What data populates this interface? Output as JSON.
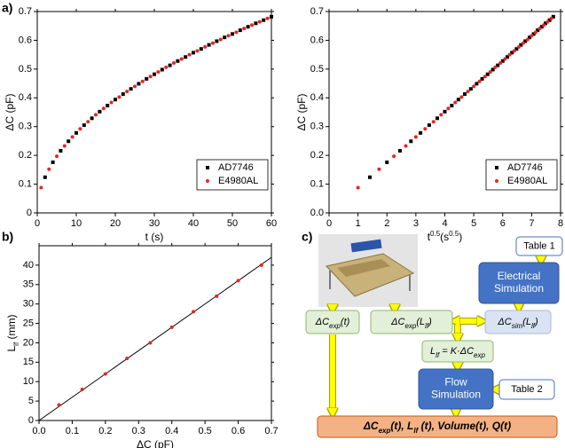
{
  "labels": [
    "a)",
    "b)",
    "c)"
  ],
  "chart_data": [
    {
      "type": "scatter",
      "x_label": "t (s)",
      "y_label": "ΔC (pF)",
      "xlim": [
        0,
        60
      ],
      "xticks": [
        0,
        10,
        20,
        30,
        40,
        50,
        60
      ],
      "ylim": [
        0,
        0.7
      ],
      "yticks": [
        0,
        0.1,
        0.2,
        0.3,
        0.4,
        0.5,
        0.6,
        0.7
      ],
      "legend": "lower right",
      "series": [
        {
          "name": "AD7746",
          "color": "#000000",
          "marker": "square",
          "x": [
            2,
            4,
            6,
            8,
            10,
            12,
            14,
            16,
            18,
            20,
            22,
            24,
            26,
            28,
            30,
            32,
            34,
            36,
            38,
            40,
            42,
            44,
            46,
            48,
            50,
            52,
            54,
            56,
            58,
            60
          ],
          "values": [
            0.124,
            0.176,
            0.216,
            0.249,
            0.278,
            0.305,
            0.329,
            0.352,
            0.373,
            0.394,
            0.413,
            0.431,
            0.449,
            0.466,
            0.482,
            0.498,
            0.513,
            0.528,
            0.542,
            0.557,
            0.57,
            0.584,
            0.597,
            0.61,
            0.622,
            0.635,
            0.647,
            0.659,
            0.67,
            0.682
          ]
        },
        {
          "name": "E4980AL",
          "color": "#e8251e",
          "marker": "circle",
          "x": [
            1,
            3,
            5,
            7,
            9,
            11,
            13,
            15,
            17,
            19,
            21,
            23,
            25,
            27,
            29,
            31,
            33,
            35,
            37,
            39,
            41,
            43,
            45,
            47,
            49,
            51,
            53,
            55,
            57,
            59
          ],
          "values": [
            0.088,
            0.152,
            0.197,
            0.233,
            0.264,
            0.292,
            0.317,
            0.341,
            0.363,
            0.384,
            0.403,
            0.422,
            0.44,
            0.457,
            0.474,
            0.49,
            0.506,
            0.521,
            0.535,
            0.55,
            0.563,
            0.577,
            0.59,
            0.603,
            0.616,
            0.628,
            0.641,
            0.653,
            0.664,
            0.676
          ]
        }
      ]
    },
    {
      "type": "scatter",
      "x_label": [
        "t",
        "0.5",
        "(s",
        "0.5",
        ")"
      ],
      "y_label": "ΔC (pF)",
      "xlim": [
        0,
        8
      ],
      "xticks": [
        0,
        1,
        2,
        3,
        4,
        5,
        6,
        7,
        8
      ],
      "ylim": [
        0,
        0.7
      ],
      "yticks": [
        {
          "value": 0,
          "label": "0.0"
        },
        0.1,
        0.2,
        0.3,
        0.4,
        0.5,
        0.6,
        0.7
      ],
      "legend": "lower right",
      "series": [
        {
          "name": "AD7746",
          "color": "#000000",
          "marker": "square",
          "x": [
            1.41,
            2,
            2.45,
            2.83,
            3.16,
            3.46,
            3.74,
            4,
            4.24,
            4.47,
            4.69,
            4.9,
            5.1,
            5.29,
            5.48,
            5.66,
            5.83,
            6,
            6.16,
            6.32,
            6.48,
            6.63,
            6.78,
            6.93,
            7.07,
            7.21,
            7.35,
            7.48,
            7.62,
            7.75
          ],
          "values": [
            0.124,
            0.176,
            0.216,
            0.249,
            0.278,
            0.305,
            0.329,
            0.352,
            0.373,
            0.394,
            0.413,
            0.431,
            0.449,
            0.466,
            0.482,
            0.498,
            0.513,
            0.528,
            0.542,
            0.557,
            0.57,
            0.584,
            0.597,
            0.61,
            0.622,
            0.635,
            0.647,
            0.659,
            0.67,
            0.682
          ]
        },
        {
          "name": "E4980AL",
          "color": "#e8251e",
          "marker": "circle",
          "x": [
            1,
            1.73,
            2.24,
            2.65,
            3,
            3.32,
            3.61,
            3.87,
            4.12,
            4.36,
            4.58,
            4.8,
            5,
            5.2,
            5.39,
            5.57,
            5.74,
            5.92,
            6.08,
            6.24,
            6.4,
            6.56,
            6.71,
            6.86,
            7,
            7.14,
            7.28,
            7.42,
            7.55,
            7.68
          ],
          "values": [
            0.088,
            0.152,
            0.197,
            0.233,
            0.264,
            0.292,
            0.317,
            0.341,
            0.363,
            0.384,
            0.403,
            0.422,
            0.44,
            0.457,
            0.474,
            0.49,
            0.506,
            0.521,
            0.535,
            0.55,
            0.563,
            0.577,
            0.59,
            0.603,
            0.616,
            0.628,
            0.641,
            0.653,
            0.664,
            0.676
          ]
        }
      ]
    },
    {
      "type": "scatter",
      "x_label": "ΔC (pF)",
      "y_label": [
        "L",
        "lf",
        " (mm)"
      ],
      "xlim": [
        0,
        0.7
      ],
      "xticks": [
        {
          "value": 0,
          "label": "0.0"
        },
        0.1,
        0.2,
        0.3,
        0.4,
        0.5,
        0.6,
        0.7
      ],
      "ylim": [
        0,
        45
      ],
      "yticks": [
        0,
        5,
        10,
        15,
        20,
        25,
        30,
        35,
        40
      ],
      "series": [
        {
          "color": "#e8251e",
          "marker": "circle",
          "x": [
            0.06,
            0.13,
            0.2,
            0.265,
            0.335,
            0.4,
            0.465,
            0.535,
            0.6,
            0.67
          ],
          "values": [
            4,
            8,
            12,
            16,
            20,
            24,
            28,
            32,
            36,
            40
          ]
        }
      ],
      "fit_line": {
        "color": "#000000",
        "x": [
          0,
          0.7
        ],
        "values": [
          0,
          42
        ]
      }
    }
  ],
  "diagram": {
    "nodes": [
      {
        "lines": [
          [
            "Table 1"
          ]
        ]
      },
      {
        "lines": [
          [
            "Electrical"
          ],
          [
            "Simulation"
          ]
        ]
      },
      {
        "lines": [
          [
            "ΔC",
            "exp",
            "(t)"
          ]
        ]
      },
      {
        "lines": [
          [
            "ΔC",
            "exp",
            "(L",
            "lf",
            ")"
          ]
        ]
      },
      {
        "lines": [
          [
            "ΔC",
            "sim",
            "(L",
            "lf",
            ")"
          ]
        ]
      },
      {
        "lines": [
          [
            "L",
            "lf",
            " = K·ΔC",
            "exp"
          ]
        ]
      },
      {
        "lines": [
          [
            "Flow"
          ],
          [
            "Simulation"
          ]
        ]
      },
      {
        "lines": [
          [
            "Table 2"
          ]
        ]
      },
      {
        "lines": [
          [
            "ΔC",
            "exp",
            "(t), L",
            "lf",
            " (t), Volume(t), Q(t)"
          ]
        ]
      }
    ]
  }
}
